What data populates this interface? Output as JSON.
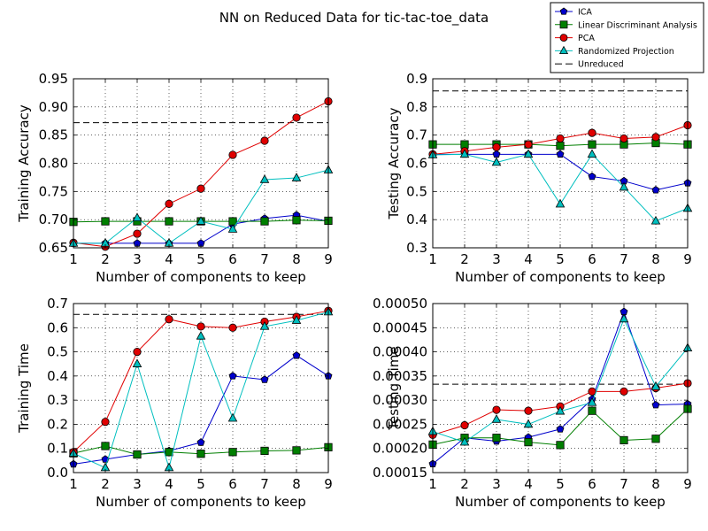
{
  "figure": {
    "title": "NN on Reduced Data for tic-tac-toe_data"
  },
  "legend": {
    "entries": [
      {
        "key": "ica",
        "label": "ICA",
        "color": "#0000cc",
        "marker": "pentagon"
      },
      {
        "key": "lda",
        "label": "Linear Discriminant Analysis",
        "color": "#007f00",
        "marker": "square"
      },
      {
        "key": "pca",
        "label": "PCA",
        "color": "#e00000",
        "marker": "circle"
      },
      {
        "key": "rp",
        "label": "Randomized Projection",
        "color": "#00bfbf",
        "marker": "triangle"
      },
      {
        "key": "unreduced",
        "label": "Unreduced",
        "color": "#000000",
        "marker": "dash"
      }
    ],
    "placement": "top-right"
  },
  "chart_data": [
    {
      "type": "line",
      "key": "training_accuracy",
      "xlabel": "Number of components to keep",
      "ylabel": "Training Accuracy",
      "xlim": [
        1,
        9
      ],
      "ylim": [
        0.65,
        0.95
      ],
      "xticks": [
        1,
        2,
        3,
        4,
        5,
        6,
        7,
        8,
        9
      ],
      "yticks": [
        0.65,
        0.7,
        0.75,
        0.8,
        0.85,
        0.9,
        0.95
      ],
      "ytick_labels": [
        "0.65",
        "0.70",
        "0.75",
        "0.80",
        "0.85",
        "0.90",
        "0.95"
      ],
      "grid": true,
      "x": [
        1,
        2,
        3,
        4,
        5,
        6,
        7,
        8,
        9
      ],
      "unreduced": 0.872,
      "series": [
        {
          "key": "ica",
          "values": [
            0.658,
            0.658,
            0.658,
            0.658,
            0.658,
            0.692,
            0.702,
            0.708,
            0.697
          ]
        },
        {
          "key": "lda",
          "values": [
            0.696,
            0.697,
            0.697,
            0.697,
            0.697,
            0.697,
            0.697,
            0.699,
            0.698
          ]
        },
        {
          "key": "pca",
          "values": [
            0.659,
            0.652,
            0.675,
            0.728,
            0.755,
            0.815,
            0.84,
            0.881,
            0.91
          ]
        },
        {
          "key": "rp",
          "values": [
            0.658,
            0.658,
            0.703,
            0.658,
            0.697,
            0.683,
            0.771,
            0.774,
            0.788
          ]
        }
      ]
    },
    {
      "type": "line",
      "key": "testing_accuracy",
      "xlabel": "Number of components to keep",
      "ylabel": "Testing Accuracy",
      "xlim": [
        1,
        9
      ],
      "ylim": [
        0.3,
        0.9
      ],
      "xticks": [
        1,
        2,
        3,
        4,
        5,
        6,
        7,
        8,
        9
      ],
      "yticks": [
        0.3,
        0.4,
        0.5,
        0.6,
        0.7,
        0.8,
        0.9
      ],
      "ytick_labels": [
        "0.3",
        "0.4",
        "0.5",
        "0.6",
        "0.7",
        "0.8",
        "0.9"
      ],
      "grid": true,
      "x": [
        1,
        2,
        3,
        4,
        5,
        6,
        7,
        8,
        9
      ],
      "unreduced": 0.857,
      "series": [
        {
          "key": "ica",
          "values": [
            0.632,
            0.632,
            0.632,
            0.632,
            0.632,
            0.553,
            0.537,
            0.505,
            0.53
          ]
        },
        {
          "key": "lda",
          "values": [
            0.667,
            0.667,
            0.667,
            0.667,
            0.662,
            0.667,
            0.667,
            0.672,
            0.667
          ]
        },
        {
          "key": "pca",
          "values": [
            0.632,
            0.643,
            0.657,
            0.667,
            0.688,
            0.708,
            0.688,
            0.693,
            0.735
          ]
        },
        {
          "key": "rp",
          "values": [
            0.63,
            0.632,
            0.603,
            0.632,
            0.455,
            0.632,
            0.515,
            0.395,
            0.44
          ]
        }
      ]
    },
    {
      "type": "line",
      "key": "training_time",
      "xlabel": "Number of components to keep",
      "ylabel": "Training Time",
      "xlim": [
        1,
        9
      ],
      "ylim": [
        0.0,
        0.7
      ],
      "xticks": [
        1,
        2,
        3,
        4,
        5,
        6,
        7,
        8,
        9
      ],
      "yticks": [
        0.0,
        0.1,
        0.2,
        0.3,
        0.4,
        0.5,
        0.6,
        0.7
      ],
      "ytick_labels": [
        "0.0",
        "0.1",
        "0.2",
        "0.3",
        "0.4",
        "0.5",
        "0.6",
        "0.7"
      ],
      "grid": true,
      "x": [
        1,
        2,
        3,
        4,
        5,
        6,
        7,
        8,
        9
      ],
      "unreduced": 0.655,
      "series": [
        {
          "key": "ica",
          "values": [
            0.035,
            0.055,
            0.075,
            0.09,
            0.125,
            0.4,
            0.385,
            0.485,
            0.4
          ]
        },
        {
          "key": "lda",
          "values": [
            0.08,
            0.11,
            0.075,
            0.085,
            0.078,
            0.085,
            0.09,
            0.092,
            0.105
          ]
        },
        {
          "key": "pca",
          "values": [
            0.085,
            0.21,
            0.5,
            0.635,
            0.605,
            0.6,
            0.625,
            0.645,
            0.67
          ]
        },
        {
          "key": "rp",
          "values": [
            0.08,
            0.02,
            0.45,
            0.02,
            0.565,
            0.225,
            0.605,
            0.63,
            0.665
          ]
        }
      ]
    },
    {
      "type": "line",
      "key": "testing_time",
      "xlabel": "Number of components to keep",
      "ylabel": "Testing Time",
      "xlim": [
        1,
        9
      ],
      "ylim": [
        0.00015,
        0.0005
      ],
      "xticks": [
        1,
        2,
        3,
        4,
        5,
        6,
        7,
        8,
        9
      ],
      "yticks": [
        0.00015,
        0.0002,
        0.00025,
        0.0003,
        0.00035,
        0.0004,
        0.00045,
        0.0005
      ],
      "ytick_labels": [
        "0.00015",
        "0.00020",
        "0.00025",
        "0.00030",
        "0.00035",
        "0.00040",
        "0.00045",
        "0.00050"
      ],
      "grid": true,
      "x": [
        1,
        2,
        3,
        4,
        5,
        6,
        7,
        8,
        9
      ],
      "unreduced": 0.000333,
      "series": [
        {
          "key": "ica",
          "values": [
            0.000168,
            0.000222,
            0.000215,
            0.000223,
            0.00024,
            0.000302,
            0.000483,
            0.00029,
            0.000292
          ]
        },
        {
          "key": "lda",
          "values": [
            0.000208,
            0.000222,
            0.000222,
            0.000213,
            0.000207,
            0.000278,
            0.000217,
            0.00022,
            0.000282
          ]
        },
        {
          "key": "pca",
          "values": [
            0.000228,
            0.000248,
            0.00028,
            0.000278,
            0.000287,
            0.000318,
            0.000318,
            0.000325,
            0.000335
          ]
        },
        {
          "key": "rp",
          "values": [
            0.000235,
            0.000213,
            0.00026,
            0.00025,
            0.000277,
            0.000295,
            0.000468,
            0.000328,
            0.000408
          ]
        }
      ]
    }
  ]
}
